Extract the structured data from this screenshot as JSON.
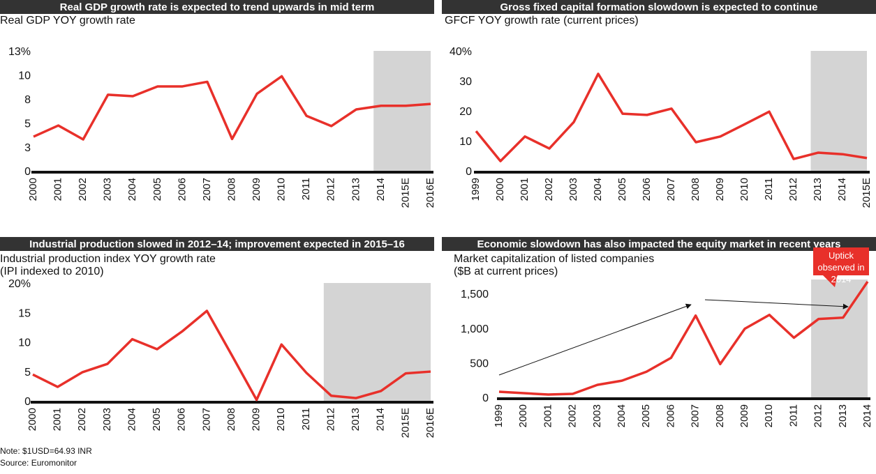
{
  "chart_data": [
    {
      "type": "line",
      "title": "Real GDP growth rate is expected to trend upwards in mid term",
      "subtitle": [
        "Real GDP YOY growth rate"
      ],
      "categories": [
        "2000",
        "2001",
        "2002",
        "2003",
        "2004",
        "2005",
        "2006",
        "2007",
        "2008",
        "2009",
        "2010",
        "2011",
        "2012",
        "2013",
        "2014",
        "2015E",
        "2016E"
      ],
      "values": [
        3.85,
        5.06,
        3.55,
        8.4,
        8.24,
        9.3,
        9.3,
        9.8,
        3.6,
        8.5,
        10.4,
        6.1,
        5.0,
        6.8,
        7.2,
        7.2,
        7.4
      ],
      "color": "#e8302a",
      "ylim": [
        0,
        13
      ],
      "yticks": [
        0,
        {
          "value": 2.6,
          "label": "3"
        },
        {
          "value": 5.2,
          "label": "5"
        },
        {
          "value": 7.8,
          "label": "8"
        },
        {
          "value": 10.4,
          "label": "10"
        },
        {
          "value": 13,
          "label": "13%"
        }
      ],
      "shaded_from": "2014"
    },
    {
      "type": "line",
      "title": "Gross fixed capital formation slowdown is expected to continue",
      "subtitle": [
        "GFCF YOY growth rate (current prices)"
      ],
      "categories": [
        "1999",
        "2000",
        "2001",
        "2002",
        "2003",
        "2004",
        "2005",
        "2006",
        "2007",
        "2008",
        "2009",
        "2010",
        "2011",
        "2012",
        "2013",
        "2014",
        "2015E"
      ],
      "values": [
        13.7,
        3.7,
        11.9,
        7.9,
        16.7,
        32.8,
        19.5,
        19.1,
        21.2,
        10,
        11.9,
        16,
        20.2,
        4.4,
        6.5,
        6,
        4.7
      ],
      "color": "#e8302a",
      "ylim": [
        0,
        40
      ],
      "yticks": [
        0,
        10,
        20,
        30,
        {
          "value": 40,
          "label": "40%"
        }
      ],
      "shaded_from": "2013"
    },
    {
      "type": "line",
      "title": "Industrial production slowed in  2012–14; improvement expected in  2015–16",
      "subtitle": [
        "Industrial production index YOY growth rate",
        "(IPI indexed to 2010)"
      ],
      "categories": [
        "2000",
        "2001",
        "2002",
        "2003",
        "2004",
        "2005",
        "2006",
        "2007",
        "2008",
        "2009",
        "2010",
        "2011",
        "2012",
        "2013",
        "2014",
        "2015E",
        "2016E"
      ],
      "values": [
        4.7,
        2.6,
        5.1,
        6.5,
        10.7,
        9,
        12,
        15.5,
        8,
        0.4,
        9.8,
        5,
        1.1,
        0.7,
        1.9,
        4.9,
        5.2
      ],
      "color": "#e8302a",
      "ylim": [
        0,
        20
      ],
      "yticks": [
        0,
        5,
        10,
        15,
        {
          "value": 20,
          "label": "20%"
        }
      ],
      "shaded_from": "2012"
    },
    {
      "type": "line",
      "title": "Economic slowdown has also impacted the equity market in recent years",
      "subtitle": [
        "Market capitalization of listed companies",
        "($B at current prices)"
      ],
      "categories": [
        "1999",
        "2000",
        "2001",
        "2002",
        "2003",
        "2004",
        "2005",
        "2006",
        "2007",
        "2008",
        "2009",
        "2010",
        "2011",
        "2012",
        "2013",
        "2014"
      ],
      "values": [
        100,
        80,
        60,
        70,
        200,
        260,
        390,
        590,
        1200,
        500,
        1010,
        1210,
        880,
        1150,
        1170,
        1690
      ],
      "color": "#e8302a",
      "ylim": [
        0,
        1700
      ],
      "yticks": [
        0,
        500,
        {
          "value": 1000,
          "label": "1,000"
        },
        {
          "value": 1500,
          "label": "1,500"
        }
      ],
      "shaded_from": "2012",
      "annotation": "Uptick observed in 2014"
    }
  ],
  "note": "Note: $1USD=64.93 INR",
  "source": "Source: Euromonitor"
}
